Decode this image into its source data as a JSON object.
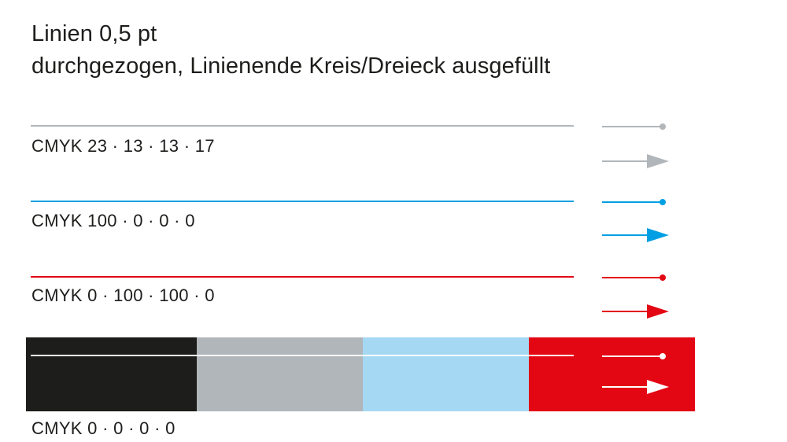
{
  "title": {
    "line1": "Linien 0,5 pt",
    "line2": "durchgezogen, Linienende Kreis/Dreieck ausgefüllt"
  },
  "samples": [
    {
      "label": "CMYK  23 · 13 · 13 · 17",
      "color": "#b1b6ba"
    },
    {
      "label": "CMYK  100 · 0 · 0 · 0",
      "color": "#009fe3"
    },
    {
      "label": "CMYK  0 · 100 · 100 · 0",
      "color": "#e30613"
    },
    {
      "label": "CMYK  0 · 0 · 0 · 0",
      "color": "#ffffff"
    }
  ],
  "background_bands": [
    "#1d1d1b",
    "#b1b6ba",
    "#a5d8f3",
    "#e30613"
  ]
}
